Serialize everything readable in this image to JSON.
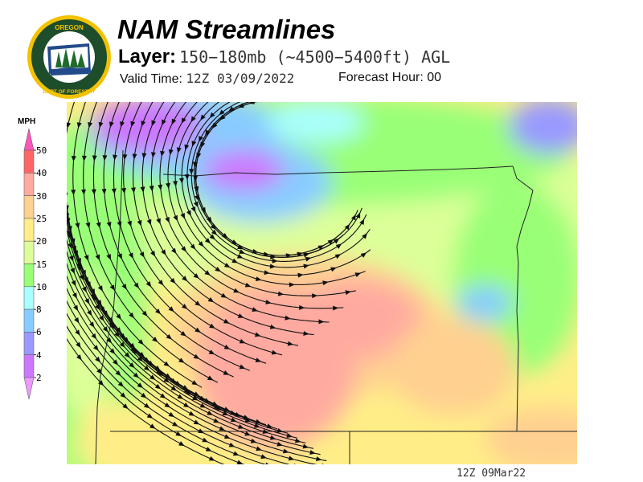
{
  "header": {
    "logo_text": "OREGON DEPARTMENT OF FORESTRY",
    "title": "NAM Streamlines",
    "layer_label": "Layer:",
    "layer_value": "150−180mb (~4500−5400ft) AGL",
    "valid_time_label": "Valid Time:",
    "valid_time_value": "12Z 03/09/2022",
    "forecast_hour_label": "Forecast Hour:",
    "forecast_hour_value": "00"
  },
  "legend": {
    "unit": "MPH",
    "levels": [
      {
        "label": "50",
        "color": "#ff6666"
      },
      {
        "label": "40",
        "color": "#ffaaa0"
      },
      {
        "label": "30",
        "color": "#ffd090"
      },
      {
        "label": "25",
        "color": "#ffee88"
      },
      {
        "label": "20",
        "color": "#ddff99"
      },
      {
        "label": "15",
        "color": "#99ff77"
      },
      {
        "label": "10",
        "color": "#aaffff"
      },
      {
        "label": "8",
        "color": "#88ccff"
      },
      {
        "label": "6",
        "color": "#9999ff"
      },
      {
        "label": "4",
        "color": "#cc77ff"
      },
      {
        "label": "2",
        "color": ""
      }
    ],
    "over_color": "#ff55bb",
    "under_color": "#ee99ff"
  },
  "map": {
    "stamp": "12Z 09Mar22"
  }
}
